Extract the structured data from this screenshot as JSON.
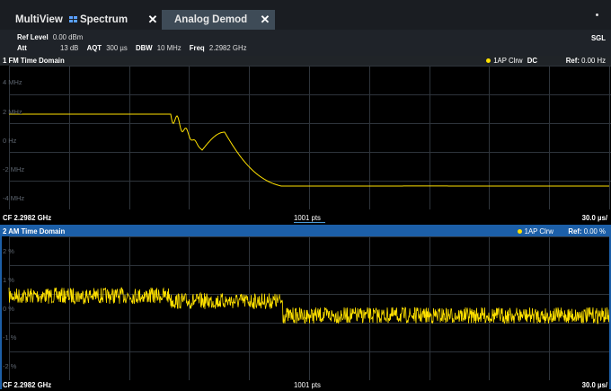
{
  "tabs": [
    {
      "label": "MultiView",
      "icon": "grid-icon",
      "active": false
    },
    {
      "label": "Spectrum",
      "active": false
    },
    {
      "label": "Analog Demod",
      "active": true
    }
  ],
  "params": {
    "ref_level_label": "Ref Level",
    "ref_level_value": "0.00 dBm",
    "att_label": "Att",
    "att_value": "13 dB",
    "aqt_label": "AQT",
    "aqt_value": "300 µs",
    "dbw_label": "DBW",
    "dbw_value": "10 MHz",
    "freq_label": "Freq",
    "freq_value": "2.2982 GHz",
    "sgl": "SGL"
  },
  "windows": [
    {
      "title": "1 FM Time Domain",
      "trace_label": "1AP Clrw",
      "dc_label": "DC",
      "ref_label": "Ref:",
      "ref_value": "0.00 Hz",
      "y_ticks": [
        "4 MHz",
        "2 MHz",
        "0 Hz",
        "-2 MHz",
        "-4 MHz"
      ],
      "footer_cf": "CF 2.2982 GHz",
      "footer_pts": "1001 pts",
      "footer_div": "30.0 µs/"
    },
    {
      "title": "2 AM Time Domain",
      "trace_label": "1AP Clrw",
      "ref_label": "Ref:",
      "ref_value": "0.00 %",
      "y_ticks": [
        "2 %",
        "1 %",
        "0 %",
        "-1 %",
        "-2 %"
      ],
      "footer_cf": "CF 2.2982 GHz",
      "footer_pts": "1001 pts",
      "footer_div": "30.0 µs/"
    }
  ],
  "colors": {
    "trace": "#ffe100",
    "grid": "#2e343b",
    "active_window": "#1c5fa8"
  }
}
